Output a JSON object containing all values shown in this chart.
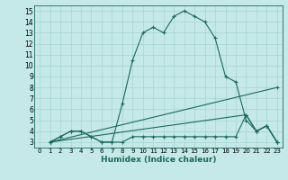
{
  "title": "",
  "xlabel": "Humidex (Indice chaleur)",
  "bg_color": "#c5e8e8",
  "line_color": "#1a6b5a",
  "grid_color": "#a8d4d4",
  "xlim": [
    -0.5,
    23.5
  ],
  "ylim": [
    2.5,
    15.5
  ],
  "xticks": [
    0,
    1,
    2,
    3,
    4,
    5,
    6,
    7,
    8,
    9,
    10,
    11,
    12,
    13,
    14,
    15,
    16,
    17,
    18,
    19,
    20,
    21,
    22,
    23
  ],
  "yticks": [
    3,
    4,
    5,
    6,
    7,
    8,
    9,
    10,
    11,
    12,
    13,
    14,
    15
  ],
  "line1_x": [
    1,
    2,
    3,
    4,
    5,
    6,
    7,
    8,
    9,
    10,
    11,
    12,
    13,
    14,
    15,
    16,
    17,
    18,
    19,
    20,
    21,
    22,
    23
  ],
  "line1_y": [
    3.0,
    3.5,
    4.0,
    4.0,
    3.5,
    3.0,
    3.0,
    6.5,
    10.5,
    13.0,
    13.5,
    13.0,
    14.5,
    15.0,
    14.5,
    14.0,
    12.5,
    9.0,
    8.5,
    5.0,
    4.0,
    4.5,
    3.0
  ],
  "line2_x": [
    1,
    2,
    3,
    4,
    5,
    6,
    7,
    8,
    9,
    10,
    11,
    12,
    13,
    14,
    15,
    16,
    17,
    18,
    19,
    20,
    21,
    22,
    23
  ],
  "line2_y": [
    3.0,
    3.5,
    4.0,
    4.0,
    3.5,
    3.0,
    3.0,
    3.0,
    3.5,
    3.5,
    3.5,
    3.5,
    3.5,
    3.5,
    3.5,
    3.5,
    3.5,
    3.5,
    3.5,
    5.5,
    4.0,
    4.5,
    3.0
  ],
  "line3_x": [
    1,
    23
  ],
  "line3_y": [
    3.0,
    8.0
  ],
  "line4_x": [
    1,
    20,
    21,
    22,
    23
  ],
  "line4_y": [
    3.0,
    5.5,
    4.0,
    4.5,
    3.0
  ]
}
